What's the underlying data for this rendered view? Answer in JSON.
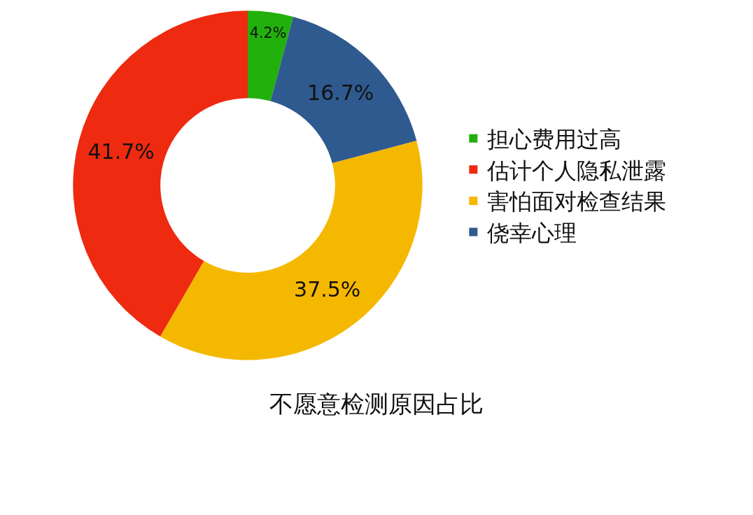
{
  "chart_data": {
    "type": "donut",
    "title": "不愿意检测原因占比",
    "categories": [
      "担心费用过高",
      "估计个人隐私泄露",
      "害怕面对检查结果",
      "侥幸心理"
    ],
    "values": [
      4.2,
      41.7,
      37.5,
      16.7
    ],
    "colors": [
      "#22b00c",
      "#ee2a10",
      "#f5b800",
      "#2f5a8f"
    ],
    "value_labels": [
      "4.2%",
      "41.7%",
      "37.5%",
      "16.7%"
    ],
    "legend": "right"
  }
}
